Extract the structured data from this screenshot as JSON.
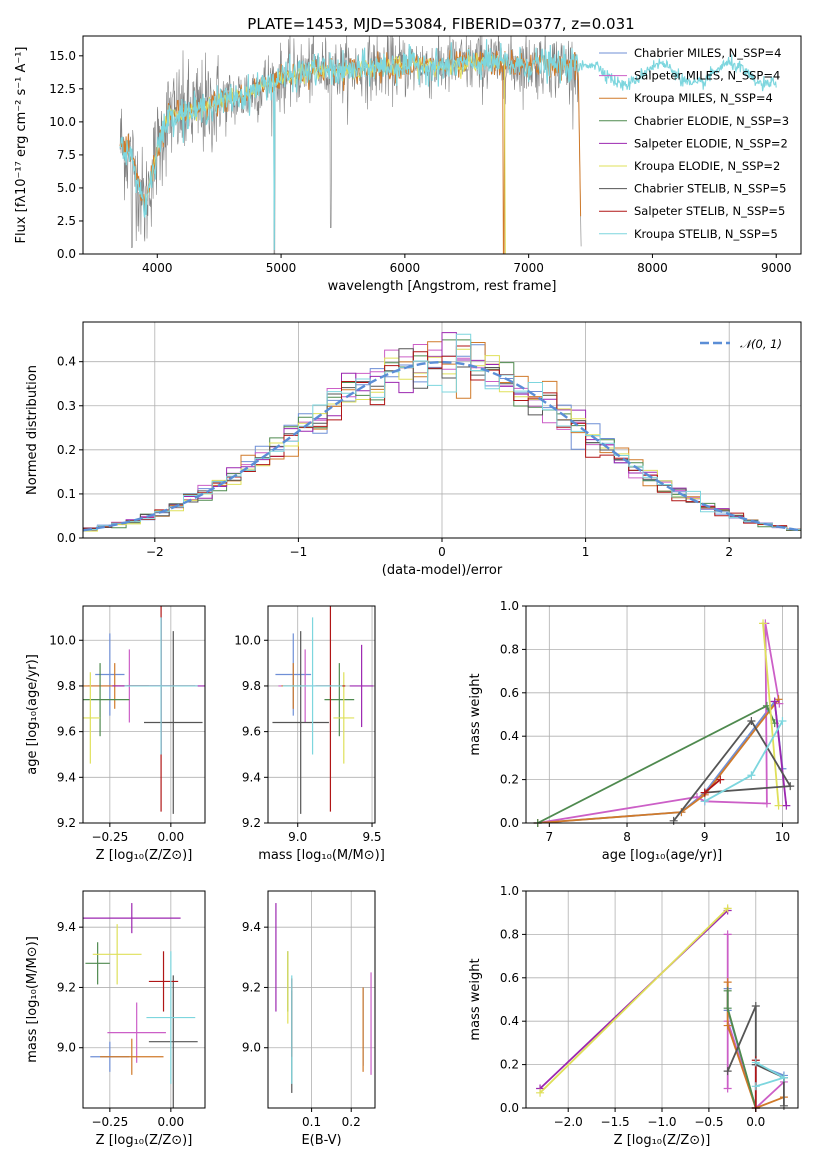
{
  "figure_title": "PLATE=1453, MJD=53084, FIBERID=0377, z=0.031",
  "palette": [
    "#6f8fd6",
    "#cc5fc7",
    "#d07a2a",
    "#4f8a4f",
    "#9c27b0",
    "#dfe05a",
    "#555555",
    "#b01616",
    "#7dd6de"
  ],
  "chart_data": [
    {
      "type": "line",
      "name": "spectrum",
      "title": "PLATE=1453, MJD=53084, FIBERID=0377, z=0.031",
      "xlabel": "wavelength [Angstrom, rest frame]",
      "ylabel": "Flux [fλ10⁻¹⁷ erg cm⁻² s⁻¹ A⁻¹]",
      "xlim": [
        3400,
        9200
      ],
      "ylim": [
        0,
        16.5
      ],
      "xticks": [
        4000,
        5000,
        6000,
        7000,
        8000,
        9000
      ],
      "yticks": [
        0.0,
        2.5,
        5.0,
        7.5,
        10.0,
        12.5,
        15.0
      ],
      "grid": false,
      "legend_position": "top-right",
      "series": [
        {
          "name": "Chabrier MILES, N_SSP=4",
          "x": [
            3700,
            3800,
            3900,
            4000,
            4100,
            4300,
            4500,
            4700,
            4900,
            5100,
            5300,
            5500,
            5700,
            5900,
            6100,
            6300,
            6500,
            6700,
            6900,
            7100,
            7300,
            7420
          ],
          "y": [
            8.5,
            7.0,
            3.5,
            8.0,
            10.5,
            10.8,
            11.5,
            12.0,
            13.0,
            13.6,
            14.0,
            13.8,
            14.1,
            14.2,
            14.3,
            14.2,
            14.4,
            14.5,
            14.3,
            14.4,
            14.2,
            14.3
          ]
        },
        {
          "name": "Salpeter MILES, N_SSP=4"
        },
        {
          "name": "Kroupa MILES, N_SSP=4"
        },
        {
          "name": "Chabrier ELODIE, N_SSP=3"
        },
        {
          "name": "Salpeter ELODIE, N_SSP=2"
        },
        {
          "name": "Kroupa ELODIE, N_SSP=2"
        },
        {
          "name": "Chabrier STELIB, N_SSP=5"
        },
        {
          "name": "Salpeter STELIB, N_SSP=5"
        },
        {
          "name": "Kroupa STELIB, N_SSP=5"
        }
      ]
    },
    {
      "type": "histogram",
      "name": "residuals",
      "xlabel": "(data-model)/error",
      "ylabel": "Normed distribution",
      "xlim": [
        -2.5,
        2.5
      ],
      "ylim": [
        0,
        0.49
      ],
      "xticks": [
        -2,
        -1,
        0,
        1,
        2
      ],
      "yticks": [
        0.0,
        0.1,
        0.2,
        0.3,
        0.4
      ],
      "grid": true,
      "bin_width": 0.1,
      "reference_label": "𝒩(0, 1)",
      "legend_position": "top-right"
    },
    {
      "type": "scatter",
      "name": "age-Z",
      "xlabel": "Z [log₁₀(Z/Z⊙)]",
      "ylabel": "age  [log₁₀(age/yr)]",
      "xlim": [
        -0.36,
        0.14
      ],
      "ylim": [
        9.2,
        10.15
      ],
      "xticks": [
        -0.25,
        0.0
      ],
      "yticks": [
        9.2,
        9.4,
        9.6,
        9.8,
        10.0
      ],
      "grid": true,
      "points": [
        {
          "x": -0.25,
          "y": 9.85,
          "xerr": 0.06,
          "yerr": 0.18
        },
        {
          "x": -0.17,
          "y": 9.8,
          "xerr": 0.17,
          "yerr": 0.16
        },
        {
          "x": -0.23,
          "y": 9.8,
          "xerr": 0.14,
          "yerr": 0.1
        },
        {
          "x": -0.29,
          "y": 9.74,
          "xerr": 0.12,
          "yerr": 0.16
        },
        {
          "x": -0.04,
          "y": 9.8,
          "xerr": 0.2,
          "yerr": 0.3
        },
        {
          "x": -0.33,
          "y": 9.66,
          "xerr": 0.04,
          "yerr": 0.2
        },
        {
          "x": 0.01,
          "y": 9.64,
          "xerr": 0.12,
          "yerr": 0.4
        },
        {
          "x": -0.04,
          "y": 9.8,
          "xerr": 0.14,
          "yerr": 0.55
        },
        {
          "x": -0.04,
          "y": 9.8,
          "xerr": 0.15,
          "yerr": 0.3
        }
      ]
    },
    {
      "type": "scatter",
      "name": "age-mass",
      "xlabel": "mass [log₁₀(M/M⊙)]",
      "ylabel": "",
      "xlim": [
        8.8,
        9.52
      ],
      "ylim": [
        9.2,
        10.15
      ],
      "xticks": [
        9.0,
        9.5
      ],
      "yticks": [
        9.2,
        9.4,
        9.6,
        9.8,
        10.0
      ],
      "grid": true,
      "points": [
        {
          "x": 8.97,
          "y": 9.85,
          "xerr": 0.12,
          "yerr": 0.18
        },
        {
          "x": 9.05,
          "y": 9.8,
          "xerr": 0.18,
          "yerr": 0.16
        },
        {
          "x": 8.97,
          "y": 9.8,
          "xerr": 0.08,
          "yerr": 0.1
        },
        {
          "x": 9.28,
          "y": 9.74,
          "xerr": 0.1,
          "yerr": 0.16
        },
        {
          "x": 9.43,
          "y": 9.8,
          "xerr": 0.08,
          "yerr": 0.18
        },
        {
          "x": 9.31,
          "y": 9.66,
          "xerr": 0.07,
          "yerr": 0.2
        },
        {
          "x": 9.02,
          "y": 9.64,
          "xerr": 0.19,
          "yerr": 0.4
        },
        {
          "x": 9.22,
          "y": 9.8,
          "xerr": 0.1,
          "yerr": 0.55
        },
        {
          "x": 9.1,
          "y": 9.8,
          "xerr": 0.2,
          "yerr": 0.3
        }
      ]
    },
    {
      "type": "line",
      "name": "weight-age",
      "xlabel": "age  [log₁₀(age/yr)]",
      "ylabel": "mass weight",
      "xlim": [
        6.7,
        10.2
      ],
      "ylim": [
        0,
        1.0
      ],
      "xticks": [
        7,
        8,
        9,
        10
      ],
      "yticks": [
        0.0,
        0.2,
        0.4,
        0.6,
        0.8,
        1.0
      ],
      "grid": true,
      "series": [
        {
          "x": [
            6.85,
            8.7,
            9.0,
            9.9,
            10.0
          ],
          "y": [
            0.0,
            0.05,
            0.14,
            0.56,
            0.25
          ],
          "color": "#6f8fd6"
        },
        {
          "x": [
            6.85,
            8.9,
            9.0,
            9.8,
            9.78,
            9.96
          ],
          "y": [
            0.0,
            0.12,
            0.1,
            0.09,
            0.92,
            0.55
          ],
          "color": "#cc5fc7"
        },
        {
          "x": [
            6.85,
            8.7,
            9.0,
            9.95
          ],
          "y": [
            0.0,
            0.05,
            0.13,
            0.57
          ],
          "color": "#d07a2a"
        },
        {
          "x": [
            6.85,
            9.8,
            9.9
          ],
          "y": [
            0.0,
            0.54,
            0.46
          ],
          "color": "#4f8a4f"
        },
        {
          "x": [
            9.9,
            10.05
          ],
          "y": [
            0.56,
            0.08
          ],
          "color": "#9c27b0"
        },
        {
          "x": [
            9.75,
            9.95
          ],
          "y": [
            0.92,
            0.08
          ],
          "color": "#dfe05a"
        },
        {
          "x": [
            8.6,
            9.6,
            10.1,
            9.0
          ],
          "y": [
            0.01,
            0.47,
            0.17,
            0.14
          ],
          "color": "#555555"
        },
        {
          "x": [
            9.0,
            9.2
          ],
          "y": [
            0.14,
            0.2
          ],
          "color": "#b01616"
        },
        {
          "x": [
            9.0,
            9.6,
            10.0
          ],
          "y": [
            0.1,
            0.22,
            0.47
          ],
          "color": "#7dd6de"
        }
      ]
    },
    {
      "type": "scatter",
      "name": "mass-Z",
      "xlabel": "Z [log₁₀(Z/Z⊙)]",
      "ylabel": "mass [log₁₀(M/M⊙)]",
      "xlim": [
        -0.36,
        0.14
      ],
      "ylim": [
        8.8,
        9.52
      ],
      "xticks": [
        -0.25,
        0.0
      ],
      "yticks": [
        9.0,
        9.2,
        9.4
      ],
      "grid": true,
      "points": [
        {
          "x": -0.25,
          "y": 8.97,
          "xerr": 0.08,
          "yerr": 0.05
        },
        {
          "x": -0.14,
          "y": 9.05,
          "xerr": 0.12,
          "yerr": 0.1
        },
        {
          "x": -0.16,
          "y": 8.97,
          "xerr": 0.13,
          "yerr": 0.06
        },
        {
          "x": -0.3,
          "y": 9.28,
          "xerr": 0.05,
          "yerr": 0.07
        },
        {
          "x": -0.16,
          "y": 9.43,
          "xerr": 0.2,
          "yerr": 0.05
        },
        {
          "x": -0.22,
          "y": 9.31,
          "xerr": 0.1,
          "yerr": 0.1
        },
        {
          "x": 0.01,
          "y": 9.02,
          "xerr": 0.1,
          "yerr": 0.22
        },
        {
          "x": -0.03,
          "y": 9.22,
          "xerr": 0.06,
          "yerr": 0.1
        },
        {
          "x": 0.0,
          "y": 9.1,
          "xerr": 0.1,
          "yerr": 0.22
        }
      ]
    },
    {
      "type": "scatter",
      "name": "mass-EBV",
      "xlabel": "E(B-V)",
      "ylabel": "",
      "xlim": [
        -0.01,
        0.26
      ],
      "ylim": [
        8.8,
        9.52
      ],
      "xticks": [
        0.1,
        0.2
      ],
      "yticks": [
        9.0,
        9.2,
        9.4
      ],
      "grid": true,
      "points": [
        {
          "x": 0.23,
          "y": 9.07,
          "yerr": 0.13
        },
        {
          "x": 0.25,
          "y": 9.08,
          "yerr": 0.17
        },
        {
          "x": 0.23,
          "y": 9.06,
          "yerr": 0.14
        },
        {
          "x": 0.04,
          "y": 9.22,
          "yerr": 0.1
        },
        {
          "x": 0.01,
          "y": 9.3,
          "yerr": 0.18
        },
        {
          "x": 0.04,
          "y": 9.2,
          "yerr": 0.12
        },
        {
          "x": 0.05,
          "y": 9.02,
          "yerr": 0.17
        },
        {
          "x": 0.05,
          "y": 9.1,
          "yerr": 0.13
        },
        {
          "x": 0.05,
          "y": 9.06,
          "yerr": 0.18
        }
      ]
    },
    {
      "type": "line",
      "name": "weight-Z",
      "xlabel": "Z [log₁₀(Z/Z⊙)]",
      "ylabel": "mass weight",
      "xlim": [
        -2.45,
        0.45
      ],
      "ylim": [
        0,
        1.0
      ],
      "xticks": [
        -2.0,
        -1.5,
        -1.0,
        -0.5,
        0.0
      ],
      "yticks": [
        0.0,
        0.2,
        0.4,
        0.6,
        0.8,
        1.0
      ],
      "grid": true,
      "series": [
        {
          "x": [
            -0.3,
            -0.3,
            0.0,
            0.0,
            0.3
          ],
          "y": [
            0.55,
            0.45,
            0.0,
            0.2,
            0.15
          ],
          "color": "#6f8fd6"
        },
        {
          "x": [
            -0.3,
            -0.3,
            -0.3,
            0.0,
            0.3
          ],
          "y": [
            0.8,
            0.09,
            0.4,
            0.0,
            0.12
          ],
          "color": "#cc5fc7"
        },
        {
          "x": [
            -0.3,
            -0.3,
            0.0,
            0.3
          ],
          "y": [
            0.58,
            0.38,
            0.0,
            0.05
          ],
          "color": "#d07a2a"
        },
        {
          "x": [
            -0.3,
            -0.3,
            0.0
          ],
          "y": [
            0.54,
            0.46,
            0.0
          ],
          "color": "#4f8a4f"
        },
        {
          "x": [
            -2.3,
            -0.3
          ],
          "y": [
            0.09,
            0.91
          ],
          "color": "#9c27b0"
        },
        {
          "x": [
            -2.3,
            -0.3
          ],
          "y": [
            0.07,
            0.92
          ],
          "color": "#dfe05a"
        },
        {
          "x": [
            -0.3,
            0.0,
            0.0,
            0.3,
            0.3
          ],
          "y": [
            0.17,
            0.47,
            0.2,
            0.14,
            0.01
          ],
          "color": "#555555"
        },
        {
          "x": [
            0.0,
            0.0
          ],
          "y": [
            0.0,
            0.22
          ],
          "color": "#b01616"
        },
        {
          "x": [
            0.0,
            0.3,
            0.0
          ],
          "y": [
            0.1,
            0.14,
            0.21
          ],
          "color": "#7dd6de"
        }
      ]
    }
  ]
}
